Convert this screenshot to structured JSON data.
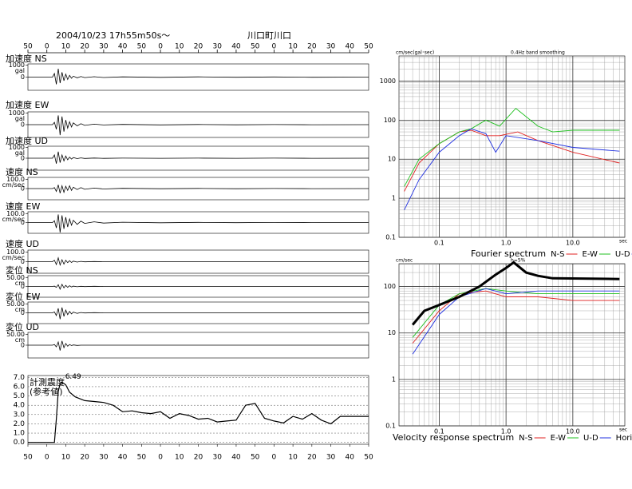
{
  "chart_data": [
    {
      "type": "waveform",
      "date": "2004/10/23 17h55m50s～",
      "station": "川口町川口",
      "xlim": [
        -10,
        170
      ],
      "xticks": [
        {
          "value": -10,
          "label": "50"
        },
        0,
        10,
        20,
        30,
        40,
        50,
        {
          "value": 60,
          "label": "0"
        },
        {
          "value": 70,
          "label": "10"
        },
        {
          "value": 80,
          "label": "20"
        },
        {
          "value": 90,
          "label": "30"
        },
        {
          "value": 100,
          "label": "40"
        },
        {
          "value": 110,
          "label": "50"
        },
        {
          "value": 120,
          "label": "0"
        },
        {
          "value": 130,
          "label": "10"
        },
        {
          "value": 140,
          "label": "20"
        },
        {
          "value": 150,
          "label": "30"
        },
        {
          "value": 160,
          "label": "40"
        },
        {
          "value": 170,
          "label": "50"
        }
      ],
      "t": [
        -10,
        3,
        4,
        5,
        6,
        7,
        8,
        9,
        10,
        11,
        12,
        13,
        14,
        16,
        18,
        20,
        25,
        30,
        40,
        60,
        80,
        100,
        120,
        140,
        170
      ],
      "panels": [
        {
          "name": "加速度 NS",
          "unit": "gal",
          "ylim": [
            -1100,
            1100
          ],
          "yticks": [
            0,
            1000
          ],
          "values": [
            0,
            0,
            300,
            -600,
            700,
            -500,
            400,
            -300,
            250,
            -200,
            150,
            -100,
            80,
            -60,
            50,
            -40,
            30,
            -30,
            20,
            -20,
            20,
            -15,
            15,
            -10,
            0
          ]
        },
        {
          "name": "加速度 EW",
          "unit": "gal",
          "ylim": [
            -1100,
            1100
          ],
          "yticks": [
            0,
            1000
          ],
          "values": [
            0,
            0,
            200,
            -400,
            800,
            -900,
            700,
            -600,
            400,
            -300,
            250,
            -200,
            150,
            -100,
            80,
            -60,
            40,
            -30,
            20,
            -20,
            15,
            -15,
            10,
            -10,
            0
          ]
        },
        {
          "name": "加速度 UD",
          "unit": "gal",
          "ylim": [
            -1100,
            1100
          ],
          "yticks": [
            0,
            1000
          ],
          "values": [
            0,
            0,
            300,
            -500,
            600,
            -400,
            300,
            -250,
            200,
            -150,
            100,
            -80,
            60,
            -40,
            30,
            -20,
            15,
            -15,
            10,
            -10,
            10,
            -10,
            5,
            -5,
            0
          ]
        },
        {
          "name": "速度 NS",
          "unit": "cm/sec",
          "ylim": [
            -120,
            120
          ],
          "yticks": [
            0,
            {
              "value": 100,
              "label": "100.0"
            }
          ],
          "values": [
            0,
            0,
            10,
            -30,
            40,
            -50,
            30,
            -40,
            25,
            -20,
            30,
            -20,
            15,
            -10,
            10,
            -8,
            5,
            -4,
            3,
            -2,
            2,
            -2,
            1,
            -1,
            0
          ]
        },
        {
          "name": "速度 EW",
          "unit": "cm/sec",
          "ylim": [
            -120,
            120
          ],
          "yticks": [
            0,
            {
              "value": 100,
              "label": "100.0"
            }
          ],
          "values": [
            0,
            0,
            20,
            -60,
            90,
            -110,
            80,
            -70,
            60,
            -50,
            40,
            -30,
            25,
            -20,
            15,
            -10,
            8,
            -6,
            4,
            -3,
            2,
            -2,
            1,
            -1,
            0
          ]
        },
        {
          "name": "速度 UD",
          "unit": "cm/sec",
          "ylim": [
            -120,
            120
          ],
          "yticks": [
            0,
            {
              "value": 100,
              "label": "100.0"
            }
          ],
          "values": [
            0,
            0,
            15,
            -30,
            40,
            -35,
            20,
            -25,
            15,
            -10,
            10,
            -8,
            6,
            -4,
            3,
            -2,
            2,
            -1,
            1,
            -1,
            0,
            0,
            0,
            0,
            0
          ]
        },
        {
          "name": "変位 NS",
          "unit": "cm",
          "ylim": [
            -60,
            60
          ],
          "yticks": [
            0,
            {
              "value": 50,
              "label": "50.00"
            }
          ],
          "values": [
            0,
            0,
            2,
            -5,
            10,
            -15,
            12,
            -8,
            6,
            -5,
            4,
            -3,
            2,
            -2,
            1,
            -1,
            1,
            0,
            0,
            0,
            0,
            0,
            0,
            0,
            0
          ]
        },
        {
          "name": "変位 EW",
          "unit": "cm",
          "ylim": [
            -60,
            60
          ],
          "yticks": [
            0,
            {
              "value": 50,
              "label": "50.00"
            }
          ],
          "values": [
            0,
            0,
            5,
            -15,
            25,
            -35,
            30,
            -20,
            15,
            -10,
            8,
            -6,
            4,
            -3,
            2,
            -1,
            1,
            0,
            0,
            0,
            0,
            0,
            0,
            0,
            0
          ]
        },
        {
          "name": "変位 UD",
          "unit": "cm",
          "ylim": [
            -60,
            60
          ],
          "yticks": [
            0,
            {
              "value": 50,
              "label": "50.00"
            }
          ],
          "values": [
            0,
            0,
            3,
            -8,
            15,
            -25,
            20,
            -12,
            8,
            -5,
            3,
            -2,
            1,
            -1,
            0,
            0,
            0,
            0,
            0,
            0,
            0,
            0,
            0,
            0,
            0
          ]
        }
      ]
    },
    {
      "type": "line",
      "label": [
        "計測震度",
        "(参考値)"
      ],
      "annotation": "6.49",
      "ylim": [
        -0.2,
        7.2
      ],
      "yticks": [
        {
          "value": 0,
          "label": "0.0"
        },
        {
          "value": 1,
          "label": "1.0"
        },
        {
          "value": 2,
          "label": "2.0"
        },
        {
          "value": 3,
          "label": "3.0"
        },
        {
          "value": 4,
          "label": "4.0"
        },
        {
          "value": 5,
          "label": "5.0"
        },
        {
          "value": 6,
          "label": "6.0"
        },
        {
          "value": 7,
          "label": "7.0"
        }
      ],
      "grid": true,
      "color": "#000000",
      "x": [
        -10,
        4,
        5,
        6,
        7,
        8,
        10,
        12,
        15,
        20,
        25,
        30,
        35,
        40,
        45,
        50,
        55,
        60,
        65,
        70,
        75,
        80,
        85,
        90,
        95,
        100,
        105,
        110,
        115,
        120,
        125,
        130,
        135,
        140,
        145,
        150,
        155,
        170
      ],
      "values": [
        0,
        0,
        2.5,
        5.5,
        6.3,
        6.49,
        6.2,
        5.4,
        4.9,
        4.5,
        4.4,
        4.3,
        4.0,
        3.3,
        3.4,
        3.2,
        3.1,
        3.3,
        2.6,
        3.1,
        2.9,
        2.5,
        2.6,
        2.2,
        2.3,
        2.4,
        4.0,
        4.2,
        2.6,
        2.3,
        2.1,
        2.8,
        2.5,
        3.1,
        2.4,
        2.0,
        2.8,
        2.8
      ]
    },
    {
      "type": "loglog",
      "title": "Fourier spectrum",
      "unit": "cm/sec(gal･sec)",
      "note": "0.4Hz band smoothing",
      "x_unit": "sec",
      "xlim": [
        0.025,
        60
      ],
      "ylim": [
        0.1,
        4400
      ],
      "log": true,
      "grid": true,
      "xticks": [
        0.1,
        {
          "value": 1,
          "label": "1.0"
        },
        {
          "value": 10,
          "label": "10.0"
        }
      ],
      "yticks": [
        0.1,
        1,
        10,
        100,
        1000
      ],
      "series": [
        {
          "name": "N-S",
          "color": "#e02020",
          "x": [
            0.03,
            0.05,
            0.1,
            0.2,
            0.3,
            0.5,
            0.8,
            1.5,
            3,
            10,
            50
          ],
          "values": [
            1.5,
            8,
            25,
            50,
            55,
            40,
            40,
            50,
            30,
            15,
            8
          ]
        },
        {
          "name": "E-W",
          "color": "#20c020",
          "x": [
            0.03,
            0.05,
            0.1,
            0.2,
            0.3,
            0.5,
            0.8,
            1.4,
            3,
            5,
            10,
            50
          ],
          "values": [
            2,
            10,
            25,
            50,
            60,
            100,
            70,
            200,
            70,
            50,
            55,
            55
          ]
        },
        {
          "name": "U-D",
          "color": "#2030e0",
          "x": [
            0.03,
            0.05,
            0.1,
            0.2,
            0.3,
            0.5,
            0.7,
            1,
            3,
            10,
            50
          ],
          "values": [
            0.5,
            3,
            15,
            40,
            60,
            45,
            15,
            40,
            30,
            20,
            16
          ]
        }
      ]
    },
    {
      "type": "loglog",
      "title": "Velocity response spectrum",
      "unit": "cm/sec",
      "note": "h=5%",
      "x_unit": "sec",
      "xlim": [
        0.025,
        60
      ],
      "ylim": [
        0.1,
        310
      ],
      "log": true,
      "grid": true,
      "xticks": [
        0.1,
        {
          "value": 1,
          "label": "1.0"
        },
        {
          "value": 10,
          "label": "10.0"
        }
      ],
      "yticks": [
        0.1,
        1,
        10,
        100
      ],
      "series": [
        {
          "name": "N-S",
          "color": "#e02020",
          "x": [
            0.04,
            0.1,
            0.2,
            0.5,
            1,
            3,
            10,
            50
          ],
          "values": [
            6,
            30,
            70,
            80,
            60,
            60,
            50,
            50
          ]
        },
        {
          "name": "E-W",
          "color": "#20c020",
          "x": [
            0.04,
            0.1,
            0.2,
            0.5,
            1,
            3,
            50
          ],
          "values": [
            8,
            40,
            70,
            90,
            80,
            70,
            70
          ]
        },
        {
          "name": "U-D",
          "color": "#2030e0",
          "x": [
            0.04,
            0.1,
            0.2,
            0.5,
            1,
            3,
            50
          ],
          "values": [
            3.5,
            25,
            60,
            90,
            70,
            80,
            80
          ]
        },
        {
          "name": "Horizon",
          "color": "#000000",
          "width": 3,
          "x": [
            0.04,
            0.06,
            0.1,
            0.2,
            0.4,
            0.7,
            1,
            1.3,
            2,
            3,
            5,
            50
          ],
          "values": [
            15,
            30,
            40,
            60,
            100,
            180,
            250,
            330,
            200,
            170,
            150,
            145
          ]
        }
      ]
    }
  ]
}
